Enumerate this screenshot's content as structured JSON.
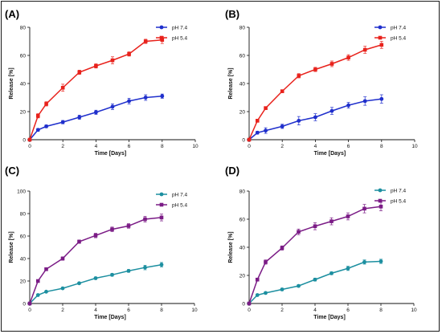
{
  "chart_data": [
    {
      "panel": "(A)",
      "type": "line",
      "xlabel": "Time [Days]",
      "ylabel": "Release [%]",
      "xlim": [
        0,
        10
      ],
      "ylim": [
        0,
        80
      ],
      "xticks": [
        0,
        2,
        4,
        6,
        8,
        10
      ],
      "yticks": [
        0,
        20,
        40,
        60,
        80
      ],
      "legend_position": "top-right",
      "x": [
        0,
        0.5,
        1,
        2,
        3,
        4,
        5,
        6,
        7,
        8
      ],
      "series": [
        {
          "name": "pH 7.4",
          "color": "#1f2fcc",
          "marker": "circle",
          "values": [
            0,
            7,
            9.5,
            12.5,
            16,
            19.5,
            23.5,
            27.5,
            30,
            31
          ],
          "errors": [
            0.5,
            1,
            1,
            1.2,
            1.5,
            1.5,
            2,
            2,
            2,
            1.5
          ]
        },
        {
          "name": "pH 5.4",
          "color": "#e8221c",
          "marker": "square",
          "values": [
            0,
            17,
            25.5,
            37,
            48,
            52.5,
            56.5,
            61,
            70,
            71
          ],
          "errors": [
            0.5,
            1.5,
            1.5,
            2.5,
            1.5,
            1.5,
            2.5,
            1.5,
            1.5,
            2.5
          ]
        }
      ]
    },
    {
      "panel": "(B)",
      "type": "line",
      "xlabel": "Time [Days]",
      "ylabel": "Release [%]",
      "xlim": [
        0,
        10
      ],
      "ylim": [
        0,
        80
      ],
      "xticks": [
        0,
        2,
        4,
        6,
        8,
        10
      ],
      "yticks": [
        0,
        20,
        40,
        60,
        80
      ],
      "legend_position": "top-right",
      "x": [
        0,
        0.5,
        1,
        2,
        3,
        4,
        5,
        6,
        7,
        8
      ],
      "series": [
        {
          "name": "pH 7.4",
          "color": "#1f2fcc",
          "marker": "circle",
          "values": [
            0,
            5,
            6.5,
            9.5,
            13.5,
            16,
            20.5,
            24.5,
            27.5,
            29
          ],
          "errors": [
            0.5,
            1,
            2,
            1.5,
            3,
            2.5,
            2.5,
            2,
            3,
            3
          ]
        },
        {
          "name": "pH 5.4",
          "color": "#e8221c",
          "marker": "square",
          "values": [
            0,
            13.5,
            22.5,
            34.5,
            45.5,
            50,
            54,
            58.5,
            64,
            67.5
          ],
          "errors": [
            0.5,
            1,
            1,
            1,
            1.5,
            1.5,
            2,
            2,
            2.5,
            2.5
          ]
        }
      ]
    },
    {
      "panel": "(C)",
      "type": "line",
      "xlabel": "Time [Days]",
      "ylabel": "Release [%]",
      "xlim": [
        0,
        10
      ],
      "ylim": [
        0,
        100
      ],
      "xticks": [
        0,
        2,
        4,
        6,
        8,
        10
      ],
      "yticks": [
        0,
        20,
        40,
        60,
        80,
        100
      ],
      "legend_position": "top-right",
      "x": [
        0,
        0.5,
        1,
        2,
        3,
        4,
        5,
        6,
        7,
        8
      ],
      "series": [
        {
          "name": "pH 7.4",
          "color": "#1c8fa0",
          "marker": "circle",
          "values": [
            0,
            7.5,
            10.5,
            13.5,
            18,
            22.5,
            25.5,
            29,
            32,
            34.5
          ],
          "errors": [
            0.5,
            0.5,
            0.5,
            0.8,
            1,
            1,
            1.2,
            1.2,
            2,
            2
          ]
        },
        {
          "name": "pH 5.4",
          "color": "#7b1c86",
          "marker": "square",
          "values": [
            0,
            20,
            30.5,
            40,
            55,
            60.5,
            66,
            69,
            75,
            76.5
          ],
          "errors": [
            0.5,
            1,
            1,
            1.5,
            1.5,
            2,
            2,
            2,
            2.5,
            3
          ]
        }
      ]
    },
    {
      "panel": "(D)",
      "type": "line",
      "xlabel": "Time [Days]",
      "ylabel": "Release [%]",
      "xlim": [
        0,
        10
      ],
      "ylim": [
        0,
        80
      ],
      "xticks": [
        0,
        2,
        4,
        6,
        8,
        10
      ],
      "yticks": [
        0,
        20,
        40,
        60,
        80
      ],
      "legend_position": "top-right",
      "x": [
        0,
        0.5,
        1,
        2,
        3,
        4,
        5,
        6,
        7,
        8
      ],
      "series": [
        {
          "name": "pH 7.4",
          "color": "#1c8fa0",
          "marker": "circle",
          "values": [
            0,
            6,
            7.5,
            10,
            12.5,
            17,
            21.5,
            25,
            29.5,
            30
          ],
          "errors": [
            0.5,
            0.5,
            0.5,
            0.8,
            0.8,
            1,
            1,
            1.5,
            1.5,
            1.5
          ]
        },
        {
          "name": "pH 5.4",
          "color": "#7b1c86",
          "marker": "square",
          "values": [
            0,
            17,
            29.5,
            39.5,
            51,
            55,
            58.5,
            62,
            67.5,
            69
          ],
          "errors": [
            0.5,
            1,
            1.5,
            1.5,
            2,
            2.5,
            2.5,
            2.5,
            3,
            3
          ]
        }
      ]
    }
  ]
}
